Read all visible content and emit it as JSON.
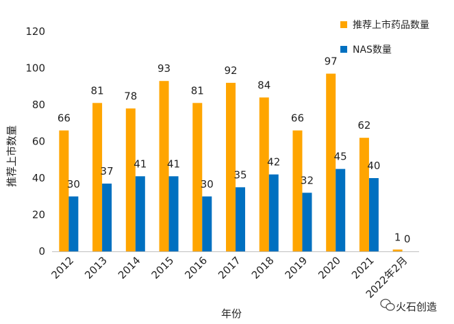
{
  "chart_data": {
    "type": "bar",
    "categories": [
      "2012",
      "2013",
      "2014",
      "2015",
      "2016",
      "2017",
      "2018",
      "2019",
      "2020",
      "2021",
      "2022年2月"
    ],
    "series": [
      {
        "name": "推荐上市药品数量",
        "color": "#FFA500",
        "values": [
          66,
          81,
          78,
          93,
          81,
          92,
          84,
          66,
          97,
          62,
          1
        ]
      },
      {
        "name": "NAS数量",
        "color": "#0070C0",
        "values": [
          30,
          37,
          41,
          41,
          30,
          35,
          42,
          32,
          45,
          40,
          0
        ]
      }
    ],
    "title": "",
    "xlabel": "年份",
    "ylabel": "推荐上市数量",
    "ylim": [
      0,
      120
    ],
    "yticks": [
      0,
      20,
      40,
      60,
      80,
      100,
      120
    ],
    "grid": false,
    "legend_position": "top-right"
  },
  "watermark": {
    "text": "火石创造"
  }
}
